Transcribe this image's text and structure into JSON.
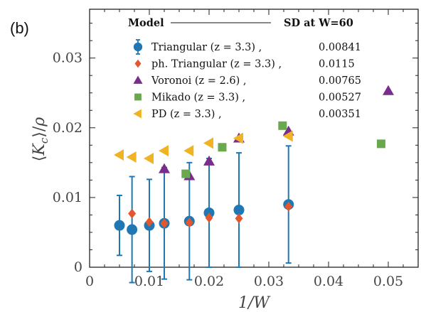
{
  "panel_label": "(b)",
  "legend": {
    "header_model": "Model",
    "header_sd": "SD at W=60",
    "entries": [
      {
        "label": "Triangular (z = 3.3) ,",
        "value": "0.00841",
        "marker": "circle",
        "color": "#1f77b4"
      },
      {
        "label": "ph. Triangular (z = 3.3) ,",
        "value": "0.0115",
        "marker": "diamond",
        "color": "#e4572e"
      },
      {
        "label": "Voronoi (z = 2.6) ,",
        "value": "0.00765",
        "marker": "triangle-up",
        "color": "#7b2d8e"
      },
      {
        "label": "Mikado (z = 3.3) ,",
        "value": "0.00527",
        "marker": "square",
        "color": "#6aa84f"
      },
      {
        "label": "PD (z = 3.3) ,",
        "value": "0.00351",
        "marker": "triangle-left",
        "color": "#f0b323"
      }
    ]
  },
  "chart_data": {
    "type": "scatter",
    "xlabel": "1/W",
    "ylabel": "⟨K_c⟩/ρ",
    "xlim": [
      0,
      0.055
    ],
    "ylim": [
      0,
      0.037
    ],
    "xticks": [
      0,
      0.01,
      0.02,
      0.03,
      0.04,
      0.05
    ],
    "xtick_labels": [
      "0",
      "0.01",
      "0.02",
      "0.03",
      "0.04",
      "0.05"
    ],
    "yticks": [
      0,
      0.01,
      0.02,
      0.03
    ],
    "ytick_labels": [
      "0",
      "0.01",
      "0.02",
      "0.03"
    ],
    "series": [
      {
        "name": "Triangular (z = 3.3)",
        "marker": "circle",
        "color": "#1f77b4",
        "points": [
          {
            "x": 0.005,
            "y": 0.006,
            "err": 0.0043
          },
          {
            "x": 0.0071,
            "y": 0.0054,
            "err": 0.0076
          },
          {
            "x": 0.01,
            "y": 0.006,
            "err": 0.0066
          },
          {
            "x": 0.0125,
            "y": 0.0063,
            "err": 0.008
          },
          {
            "x": 0.0167,
            "y": 0.0066,
            "err": 0.0084
          },
          {
            "x": 0.02,
            "y": 0.0078,
            "err": 0.0078
          },
          {
            "x": 0.025,
            "y": 0.0082,
            "err": 0.0082
          },
          {
            "x": 0.0333,
            "y": 0.009,
            "err": 0.0084
          }
        ]
      },
      {
        "name": "ph. Triangular (z = 3.3)",
        "marker": "diamond",
        "color": "#e4572e",
        "points": [
          {
            "x": 0.0071,
            "y": 0.0077
          },
          {
            "x": 0.01,
            "y": 0.0065
          },
          {
            "x": 0.0125,
            "y": 0.0063
          },
          {
            "x": 0.0167,
            "y": 0.0064
          },
          {
            "x": 0.02,
            "y": 0.0071
          },
          {
            "x": 0.025,
            "y": 0.007
          },
          {
            "x": 0.0333,
            "y": 0.0087
          }
        ]
      },
      {
        "name": "Voronoi (z = 2.6)",
        "marker": "triangle-up",
        "color": "#7b2d8e",
        "points": [
          {
            "x": 0.0125,
            "y": 0.0141
          },
          {
            "x": 0.0167,
            "y": 0.0131
          },
          {
            "x": 0.02,
            "y": 0.0152
          },
          {
            "x": 0.025,
            "y": 0.0185
          },
          {
            "x": 0.0333,
            "y": 0.0195
          },
          {
            "x": 0.05,
            "y": 0.0253
          }
        ]
      },
      {
        "name": "Mikado (z = 3.3)",
        "marker": "square",
        "color": "#6aa84f",
        "points": [
          {
            "x": 0.0161,
            "y": 0.0134
          },
          {
            "x": 0.0222,
            "y": 0.0172
          },
          {
            "x": 0.0323,
            "y": 0.0203
          },
          {
            "x": 0.0488,
            "y": 0.0177
          }
        ]
      },
      {
        "name": "PD (z = 3.3)",
        "marker": "triangle-left",
        "color": "#f0b323",
        "points": [
          {
            "x": 0.005,
            "y": 0.0161
          },
          {
            "x": 0.0071,
            "y": 0.0158
          },
          {
            "x": 0.01,
            "y": 0.0156
          },
          {
            "x": 0.0125,
            "y": 0.0167
          },
          {
            "x": 0.0167,
            "y": 0.0167
          },
          {
            "x": 0.02,
            "y": 0.0178
          },
          {
            "x": 0.025,
            "y": 0.0185
          },
          {
            "x": 0.0333,
            "y": 0.0188
          }
        ]
      }
    ]
  }
}
